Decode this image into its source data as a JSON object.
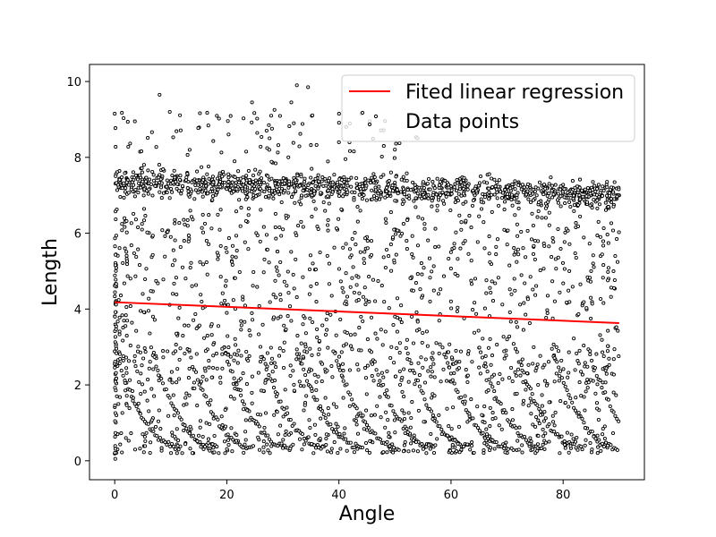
{
  "chart_data": {
    "type": "scatter",
    "title": "",
    "xlabel": "Angle",
    "ylabel": "Length",
    "xlim": [
      -4.5,
      94.5
    ],
    "ylim": [
      -0.5,
      10.45
    ],
    "xticks": [
      0,
      20,
      40,
      60,
      80
    ],
    "yticks": [
      0,
      2,
      4,
      6,
      8,
      10
    ],
    "grid": false,
    "legend_position": "top-right",
    "legend": [
      "Fited linear regression",
      "Data points"
    ],
    "series": [
      {
        "name": "Fited linear regression",
        "kind": "line",
        "color": "#ff0000",
        "x": [
          0,
          90
        ],
        "y": [
          4.18,
          3.63
        ]
      },
      {
        "name": "Data points",
        "kind": "scatter",
        "marker_edge": "#000000",
        "marker_face": "#ffffff",
        "approx_point_count": 3000,
        "description_bands": [
          {
            "x_range": [
              0,
              90
            ],
            "y_center_start": 7.35,
            "y_center_end": 7.0,
            "spread": 0.25
          },
          {
            "x_range": [
              0,
              90
            ],
            "y_range": [
              0.0,
              6.8
            ],
            "distribution": "scattered"
          }
        ],
        "x": [
          0,
          0.1,
          0.3,
          0.5,
          1,
          1.5,
          2,
          3,
          5,
          8,
          8.5,
          10,
          15,
          24.5,
          27.5,
          28.5,
          31.5,
          32.5,
          34.5,
          40,
          44,
          45.5,
          48,
          50,
          55,
          60,
          63,
          65,
          70,
          75,
          78,
          80,
          85,
          88,
          90,
          10,
          20,
          30,
          45,
          50,
          60,
          75,
          85,
          5,
          20,
          35,
          50,
          60,
          70,
          89
        ],
        "y": [
          9.15,
          0.05,
          1.2,
          2.5,
          7.4,
          7.3,
          0.6,
          7.2,
          0.7,
          9.65,
          7.5,
          7.3,
          7.4,
          9.45,
          8.85,
          9.25,
          9.45,
          9.9,
          9.85,
          8.4,
          9.15,
          8.95,
          8.3,
          7.25,
          7.3,
          7.2,
          7.15,
          7.25,
          7.2,
          7.1,
          7.15,
          7.05,
          7.0,
          6.95,
          7.0,
          5.9,
          5.5,
          6.1,
          5.9,
          6.1,
          5.5,
          5.8,
          5.0,
          4.4,
          3.9,
          4.6,
          3.8,
          4.2,
          3.2,
          1.8
        ]
      }
    ]
  }
}
